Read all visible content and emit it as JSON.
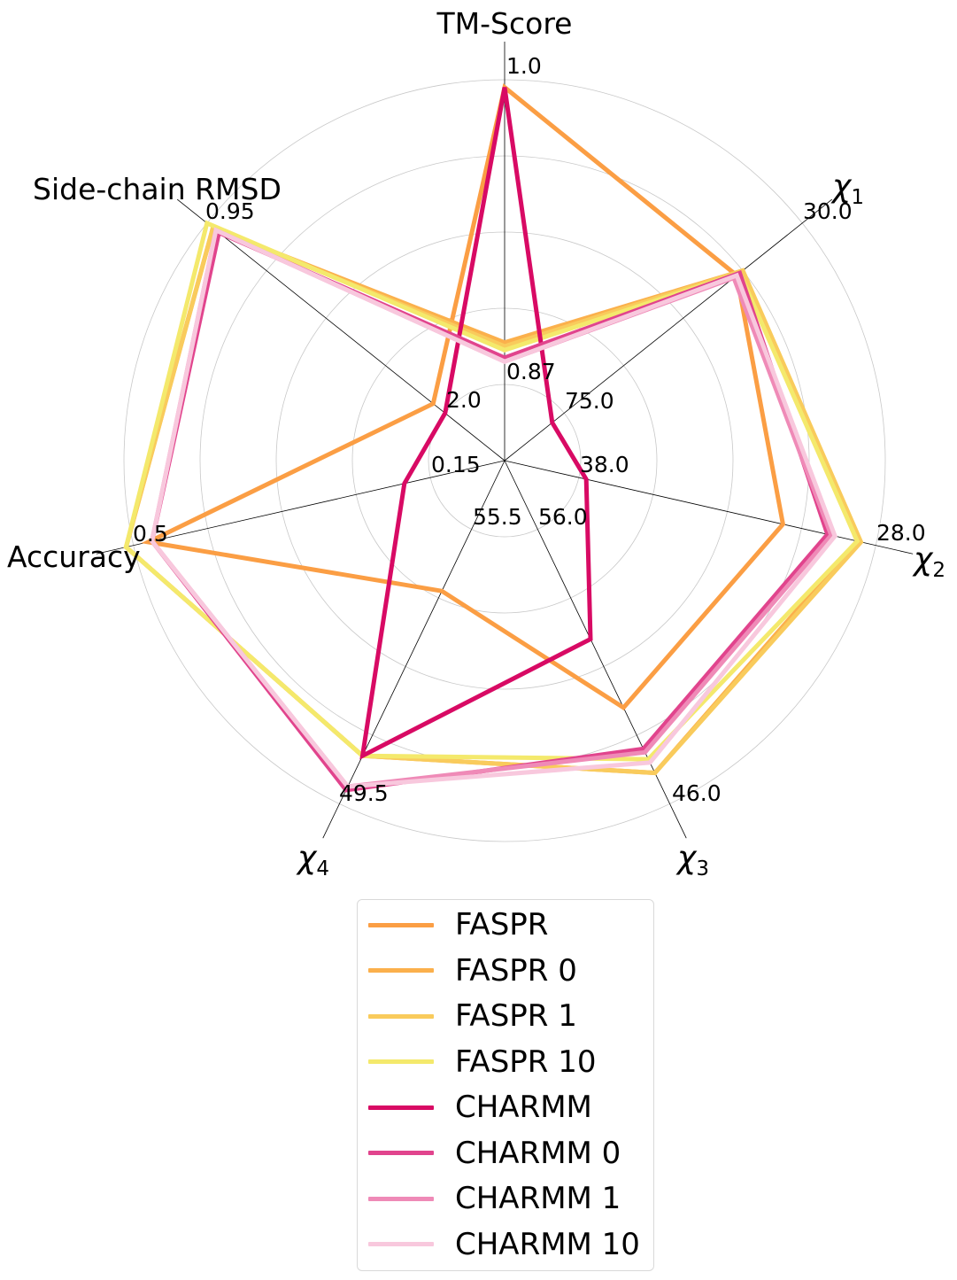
{
  "chart_data": {
    "type": "radar",
    "axes": [
      {
        "label": "TM-Score",
        "ticks": {
          "outer": "1.0",
          "inner": "0.87"
        }
      },
      {
        "label": "χ",
        "subscript": "1",
        "ticks": {
          "outer": "30.0",
          "inner": "75.0"
        }
      },
      {
        "label": "χ",
        "subscript": "2",
        "ticks": {
          "outer": "28.0",
          "inner": "38.0"
        }
      },
      {
        "label": "χ",
        "subscript": "3",
        "ticks": {
          "outer": "46.0",
          "inner": "56.0"
        }
      },
      {
        "label": "χ",
        "subscript": "4",
        "ticks": {
          "outer": "49.5",
          "inner": "55.5"
        }
      },
      {
        "label": "Accuracy",
        "ticks": {
          "outer": "0.5",
          "inner": "0.15"
        }
      },
      {
        "label": "Side-chain RMSD",
        "ticks": {
          "outer": "0.95",
          "inner": "2.0"
        }
      }
    ],
    "rlim": [
      0,
      1
    ],
    "grid": true,
    "legend_position": "bottom-center",
    "series": [
      {
        "name": "FASPR",
        "color": "#fb9e44",
        "values": [
          0.98,
          0.78,
          0.75,
          0.72,
          0.38,
          0.96,
          0.24
        ]
      },
      {
        "name": "FASPR 0",
        "color": "#fbb04c",
        "values": [
          0.31,
          0.8,
          0.95,
          0.91,
          0.86,
          1.02,
          0.98
        ]
      },
      {
        "name": "FASPR 1",
        "color": "#f9cb5c",
        "values": [
          0.3,
          0.8,
          0.96,
          0.91,
          0.86,
          1.02,
          0.98
        ]
      },
      {
        "name": "FASPR 10",
        "color": "#f4e96c",
        "values": [
          0.29,
          0.79,
          0.95,
          0.87,
          0.86,
          1.02,
          1.0
        ]
      },
      {
        "name": "CHARMM",
        "color": "#d80a64",
        "values": [
          0.98,
          0.16,
          0.22,
          0.52,
          0.86,
          0.27,
          0.2
        ]
      },
      {
        "name": "CHARMM 0",
        "color": "#e1448d",
        "values": [
          0.27,
          0.79,
          0.87,
          0.84,
          0.96,
          0.95,
          0.96
        ]
      },
      {
        "name": "CHARMM 1",
        "color": "#ef8ab7",
        "values": [
          0.26,
          0.77,
          0.88,
          0.85,
          0.95,
          0.95,
          0.97
        ]
      },
      {
        "name": "CHARMM 10",
        "color": "#f8c8dd",
        "values": [
          0.26,
          0.78,
          0.89,
          0.88,
          0.95,
          0.95,
          0.97
        ]
      }
    ]
  }
}
